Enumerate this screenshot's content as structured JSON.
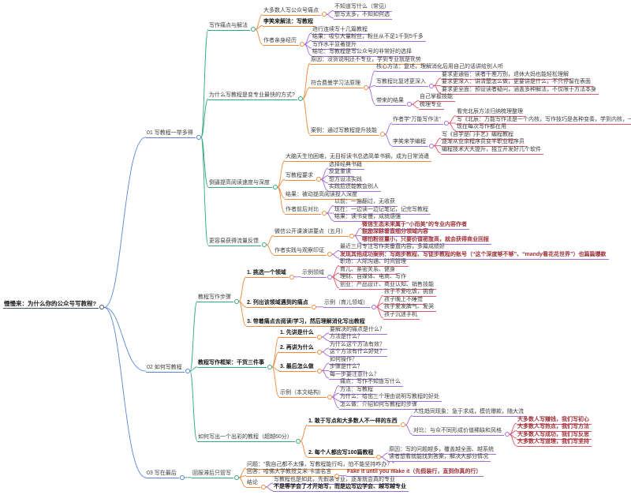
{
  "theme": {
    "background": "#ffffff",
    "text_color": "#3c3c3c",
    "bold_text_color": "#161616",
    "emphasis_text_color": "#9e3039",
    "depth_colors": [
      "#44546a",
      "#5b84d6",
      "#35a97c",
      "#ee8b3f",
      "#a06ed6",
      "#e2566b"
    ]
  },
  "mindmap": {
    "t": "慢慢来：为什么你的公众号写教程?",
    "c": [
      {
        "t": "01 写教程一举多得",
        "c": [
          {
            "t": "写作痛点与解法",
            "c": [
              {
                "t": "大多数人写公众号痛点",
                "c": [
                  {
                    "t": "不知道写什么（常见）"
                  },
                  {
                    "t": "想写太多，不知如何选"
                  }
                ]
              },
              {
                "t": "李笑来解法：写教程",
                "s": "bold"
              },
              {
                "t": "作者亲身经历",
                "c": [
                  {
                    "t": "进行连续写十几篇教程"
                  },
                  {
                    "t": "结果：吸引大量粉丝，粉丝从不足1千到5千多"
                  },
                  {
                    "t": "写作水平显著提升"
                  },
                  {
                    "t": "结论：写教程是写公众号的非常好的选择"
                  }
                ]
              }
            ]
          },
          {
            "t": "为什么写教程是变专业最快的方式?",
            "c": [
              {
                "t": "原因：没货说明还不专业，学到专业就是优势"
              },
              {
                "t": "符合费曼学习法原理",
                "c": [
                  {
                    "t": "核心方法：复述，理解消化后用自己的话讲给别人听"
                  },
                  {
                    "t": "写教程比复述更深入",
                    "c": [
                      {
                        "t": "要求更通俗：读者千差万别，退休大妈也能轻松理解"
                      },
                      {
                        "t": "要求更深入：讲清楚怎么做，更要讲是什么，不只停留在表面"
                      },
                      {
                        "t": "要求更全面：预设读者疑问，涵盖多种解法，不仅限于方法本身"
                      }
                    ]
                  },
                  {
                    "t": "带来的结果",
                    "c": [
                      {
                        "t": "自己掌握技能"
                      },
                      {
                        "t": "梳理专业"
                      }
                    ]
                  }
                ]
              },
              {
                "t": "案例：通过写教程提升技能",
                "c": [
                  {
                    "t": "作者学“万能写作法”",
                    "c": [
                      {
                        "t": "看完北辰方法归纳梳理整理"
                      },
                      {
                        "t": "写《北辰：万能写作法是一个内核，写作技巧是各种变奏，学到内核，一通百通》教程后完全搞明白"
                      },
                      {
                        "t": "现在每次写作都在用"
                      }
                    ]
                  },
                  {
                    "t": "李笑来学编程",
                    "c": [
                      {
                        "t": "写《自学是门手艺》编程教程"
                      },
                      {
                        "t": "逐渐从业余程序员变半职业程序员"
                      },
                      {
                        "t": "编程技术大大提升，独立开发好几个软件"
                      }
                    ]
                  }
                ]
              }
            ]
          },
          {
            "t": "倒逼提高阅读速度与深度",
            "c": [
              {
                "t": "大脑天生怕困难，无目标读书总选简单书摘，成为日常消遣"
              },
              {
                "t": "写教程要求",
                "c": [
                  {
                    "t": "选择经典书籍"
                  },
                  {
                    "t": "反复重读"
                  },
                  {
                    "t": "想方设法实践"
                  },
                  {
                    "t": "实践后还能教会别人"
                  }
                ]
              },
              {
                "t": "结果：被动提高阅读投入深度"
              },
              {
                "t": "作者前后对比",
                "c": [
                  {
                    "t": "以前：一遍翻过，无收获"
                  },
                  {
                    "t": "现在：一边读一边记笔记，记完写教程"
                  },
                  {
                    "t": "结果：读书变慢，成就感强"
                  }
                ]
              }
            ]
          },
          {
            "t": "更容易获得流量反馈",
            "c": [
              {
                "t": "微信公开课演讲要点（五月）",
                "c": [
                  {
                    "t": "微信生态未来属于“小而美”的专业内容作者",
                    "s": "red"
                  },
                  {
                    "t": "鼓励深耕垂直细分领域内容",
                    "s": "red"
                  },
                  {
                    "t": "哪怕粉丝量小，只要价值密度高，就会获得商业回报",
                    "s": "red"
                  }
                ]
              },
              {
                "t": "作者实践与观察印证",
                "c": [
                  {
                    "t": "最近三月专注写作类垂直内容，多篇成绩好"
                  },
                  {
                    "t": "发现其他成功案例：写跑步教程、写徒步教程的账号（“这个深度够不够”、“mandy看花花世界”）也篇篇爆款",
                    "s": "red"
                  }
                ]
              }
            ]
          }
        ]
      },
      {
        "t": "02 如何写教程",
        "c": [
          {
            "t": "教程写作步骤",
            "c": [
              {
                "t": "1. 挑选一个领域",
                "s": "bold",
                "c": [
                  {
                    "t": "示例领域",
                    "c": [
                      {
                        "t": "职场：人际沟通、时间管理"
                      },
                      {
                        "t": "育儿、亲密关系、健身"
                      },
                      {
                        "t": "理财、自媒体、电商、写作"
                      },
                      {
                        "t": "创业：产品设计、商业认知、销售技能"
                      }
                    ]
                  }
                ]
              },
              {
                "t": "2. 列出该领域遇到的痛点",
                "s": "bold",
                "c": [
                  {
                    "t": "示例（育儿领域）",
                    "c": [
                      {
                        "t": "孩子不爱吃饭，挑食"
                      },
                      {
                        "t": "孩子晚上不睡觉"
                      },
                      {
                        "t": "孩子爱发脾气、爱哭"
                      },
                      {
                        "t": "孩子沉迷手机"
                      }
                    ]
                  }
                ]
              },
              {
                "t": "3. 带着痛点去阅读/学习，然后理解消化写出教程",
                "s": "bold"
              }
            ]
          },
          {
            "t": "教程写作框架：干货三件事",
            "s": "bold",
            "c": [
              {
                "t": "1. 先讲是什么",
                "s": "bold",
                "c": [
                  {
                    "t": "要解决的痛点是什么？"
                  },
                  {
                    "t": "方法是什么？"
                  }
                ]
              },
              {
                "t": "2. 再讲为什么",
                "s": "bold",
                "c": [
                  {
                    "t": "为什么这个方法有效？"
                  },
                  {
                    "t": "这个方法有什么好处？"
                  }
                ]
              },
              {
                "t": "3. 最后怎么做",
                "s": "bold",
                "c": [
                  {
                    "t": "如何操作？"
                  },
                  {
                    "t": "步骤是什么？"
                  },
                  {
                    "t": "每一步要注意什么？"
                  }
                ]
              },
              {
                "t": "示例（本文结构）",
                "c": [
                  {
                    "t": "痛点：写作不知道写什么"
                  },
                  {
                    "t": "方法：写教程"
                  },
                  {
                    "t": "为什么：给出三个理由说明写教程的好处"
                  },
                  {
                    "t": "怎么做：介绍如何写教程的步骤"
                  }
                ]
              }
            ]
          },
          {
            "t": "如何写出一个出彩的教程（超越60分）",
            "c": [
              {
                "t": "1. 敢于写点和大多数人不一样的东西",
                "s": "bold",
                "c": [
                  {
                    "t": "人性趋同现象：急于求成，模仿爆款，随大流"
                  },
                  {
                    "t": "对比：与众不同形成价值稀缺和风格",
                    "c": [
                      {
                        "t": "大多数人写赚钱，我们写初心",
                        "s": "red"
                      },
                      {
                        "t": "大多数人写热点，我们写方法",
                        "s": "red"
                      },
                      {
                        "t": "大多数人写成功，我们写反思",
                        "s": "red"
                      },
                      {
                        "t": "大多数人写道理，我们写坚持",
                        "s": "red"
                      }
                    ]
                  }
                ]
              },
              {
                "t": "2. 每个人都应写100篇教程",
                "s": "bold",
                "c": [
                  {
                    "t": "原因：写的问题越多，覆盖越全面、越系统"
                  },
                  {
                    "t": "读者想看就能找到答案，解决大部分情况"
                  }
                ]
              }
            ]
          }
        ]
      },
      {
        "t": "03 写在最后",
        "c": [
          {
            "t": "回报滞后只管写",
            "c": [
              {
                "t": "问题：“我自己都不太懂，写教程能行吗，怕不能坚持咋办？”"
              },
              {
                "t": "回答：哈佛大学教授艾米·卡迪名言",
                "c": [
                  {
                    "t": "Fake it until you make it（先假装行，直到你真的行）",
                    "s": "red"
                  }
                ]
              },
              {
                "t": "结论",
                "c": [
                  {
                    "t": "写教程也是如此，先假装专业，逐渐就会真的专业"
                  },
                  {
                    "t": "不是等学会了才开始写，而是边写边学会、越写越专业",
                    "s": "bold"
                  }
                ]
              }
            ]
          }
        ]
      }
    ]
  }
}
